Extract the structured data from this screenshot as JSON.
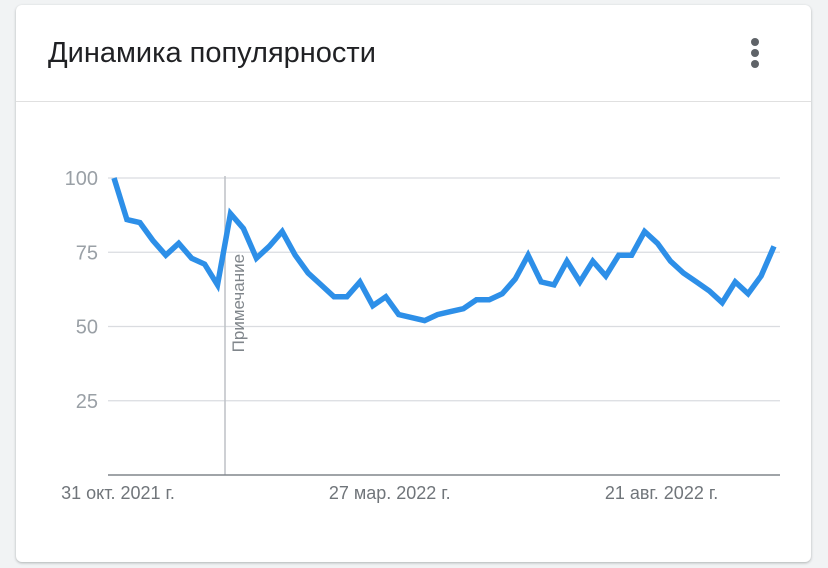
{
  "card": {
    "title": "Динамика популярности",
    "menu_icon": "more-vert-icon"
  },
  "chart_data": {
    "type": "line",
    "title": "Динамика популярности",
    "xlabel": "",
    "ylabel": "",
    "ylim": [
      0,
      100
    ],
    "y_ticks": [
      100,
      75,
      50,
      25
    ],
    "x_tick_labels": [
      "31 окт. 2021 г.",
      "27 мар. 2022 г.",
      "21 авг. 2022 г."
    ],
    "x_tick_index": [
      0,
      21,
      42
    ],
    "grid": true,
    "series": [
      {
        "color": "#2d8fe8",
        "values": [
          100,
          86,
          85,
          79,
          74,
          78,
          73,
          71,
          64,
          88,
          83,
          73,
          77,
          82,
          74,
          68,
          64,
          60,
          60,
          65,
          57,
          60,
          54,
          53,
          52,
          54,
          55,
          56,
          59,
          59,
          61,
          66,
          74,
          65,
          64,
          72,
          65,
          72,
          67,
          74,
          74,
          82,
          78,
          72,
          68,
          65,
          62,
          58,
          65,
          61,
          67,
          77
        ]
      }
    ],
    "annotation": {
      "label": "Примечание",
      "index": 8.5
    }
  }
}
